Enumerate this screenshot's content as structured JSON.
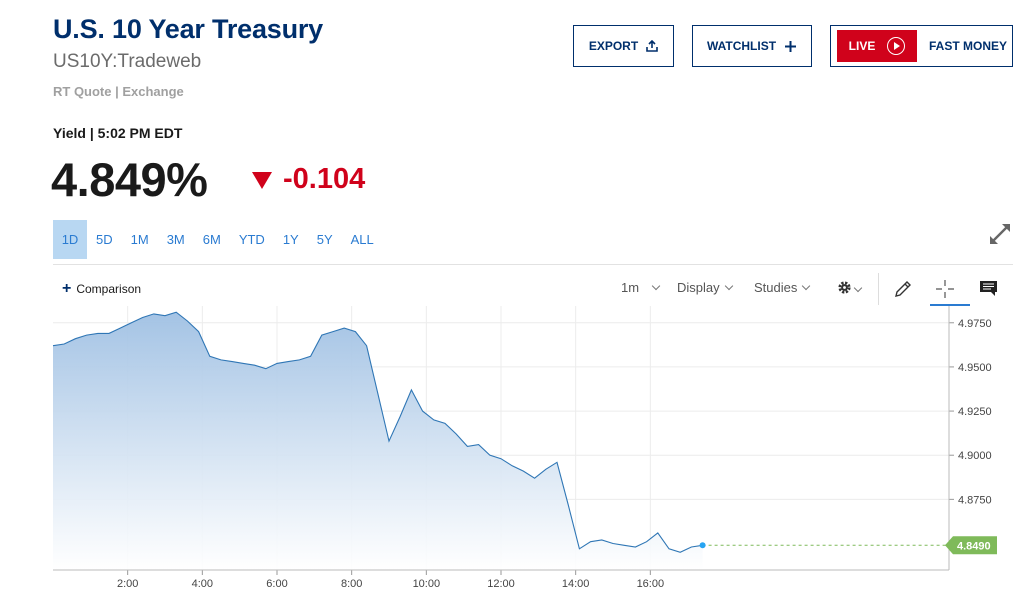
{
  "header": {
    "title": "U.S. 10 Year Treasury",
    "symbol": "US10Y:Tradeweb",
    "quote_source": "RT Quote | Exchange",
    "yield_time": "Yield | 5:02 PM EDT",
    "price": "4.849%",
    "change": "-0.104"
  },
  "actions": {
    "export_label": "EXPORT",
    "watchlist_label": "WATCHLIST",
    "live_label": "LIVE",
    "fast_money_label": "FAST MONEY"
  },
  "ranges": [
    "1D",
    "5D",
    "1M",
    "3M",
    "6M",
    "YTD",
    "1Y",
    "5Y",
    "ALL"
  ],
  "active_range": "1D",
  "toolbar": {
    "comparison_label": "Comparison",
    "interval_label": "1m",
    "display_label": "Display",
    "studies_label": "Studies"
  },
  "colors": {
    "brand": "#002f6c",
    "negative": "#d0021b",
    "link": "#2a7bd1",
    "line": "#2f76b5",
    "last_price_badge": "#7fba5a"
  },
  "chart_data": {
    "type": "area",
    "x_ticks": [
      "2:00",
      "4:00",
      "6:00",
      "8:00",
      "10:00",
      "12:00",
      "14:00",
      "16:00"
    ],
    "y_ticks": [
      "4.9750",
      "4.9500",
      "4.9250",
      "4.9000",
      "4.8750"
    ],
    "ylim": [
      4.835,
      4.9845
    ],
    "last_value_label": "4.8490",
    "last_value": 4.849,
    "grid": true,
    "series": [
      {
        "x": [
          0.0,
          0.3,
          0.6,
          0.9,
          1.2,
          1.5,
          1.8,
          2.1,
          2.4,
          2.7,
          3.0,
          3.3,
          3.6,
          3.9,
          4.2,
          4.5,
          4.8,
          5.1,
          5.4,
          5.7,
          6.0,
          6.3,
          6.6,
          6.9,
          7.2,
          7.5,
          7.8,
          8.1,
          8.4,
          8.7,
          9.0,
          9.3,
          9.6,
          9.9,
          10.2,
          10.5,
          10.8,
          11.1,
          11.4,
          11.7,
          12.0,
          12.3,
          12.6,
          12.9,
          13.2,
          13.5,
          13.8,
          14.1,
          14.4,
          14.7,
          15.0,
          15.3,
          15.6,
          15.9,
          16.2,
          16.5,
          16.8,
          17.1,
          17.4
        ],
        "y": [
          4.962,
          4.963,
          4.966,
          4.968,
          4.969,
          4.969,
          4.972,
          4.975,
          4.978,
          4.98,
          4.979,
          4.981,
          4.976,
          4.97,
          4.956,
          4.954,
          4.953,
          4.952,
          4.951,
          4.949,
          4.952,
          4.953,
          4.954,
          4.956,
          4.968,
          4.97,
          4.972,
          4.97,
          4.962,
          4.935,
          4.908,
          4.922,
          4.937,
          4.925,
          4.92,
          4.918,
          4.912,
          4.905,
          4.906,
          4.9,
          4.898,
          4.894,
          4.891,
          4.887,
          4.892,
          4.896,
          4.872,
          4.847,
          4.851,
          4.852,
          4.85,
          4.849,
          4.848,
          4.851,
          4.856,
          4.847,
          4.845,
          4.848,
          4.849
        ]
      }
    ]
  }
}
